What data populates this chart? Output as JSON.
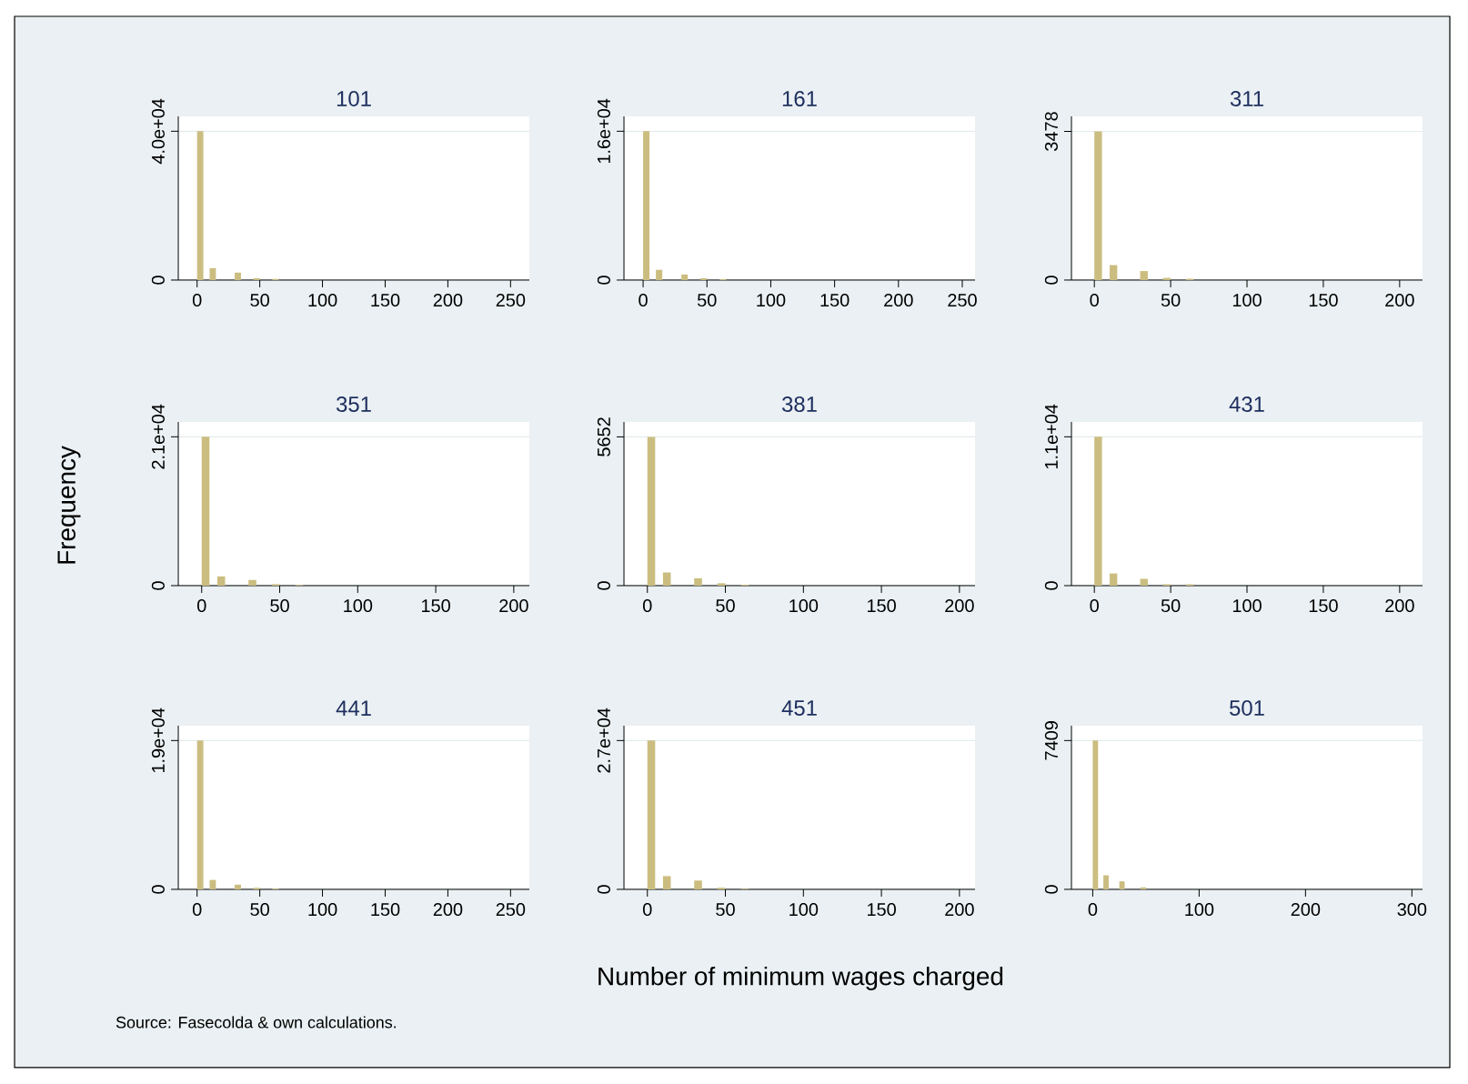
{
  "chart_data": [
    {
      "type": "histogram",
      "title": "101",
      "color": "#cbbd7f",
      "grid": "y",
      "bins": [
        0,
        5,
        10,
        15,
        20,
        25,
        30,
        35,
        40,
        45,
        50,
        55,
        60,
        65,
        70
      ],
      "values": [
        40000,
        0,
        3200,
        0,
        0,
        0,
        2000,
        0,
        0,
        500,
        0,
        0,
        300,
        0
      ],
      "xlim": [
        -15,
        265
      ],
      "xticks": [
        0,
        50,
        100,
        150,
        200,
        250
      ],
      "ylim": [
        0,
        44000
      ],
      "yticks": [
        0,
        {
          "value": 40000,
          "label": "4.0e+04"
        }
      ]
    },
    {
      "type": "histogram",
      "title": "161",
      "color": "#cbbd7f",
      "grid": "y",
      "bins": [
        0,
        5,
        10,
        15,
        20,
        25,
        30,
        35,
        40,
        45,
        50,
        55,
        60,
        65,
        70
      ],
      "values": [
        16000,
        0,
        1100,
        0,
        0,
        0,
        600,
        0,
        0,
        200,
        0,
        0,
        100,
        0
      ],
      "xlim": [
        -15,
        260
      ],
      "xticks": [
        0,
        50,
        100,
        150,
        200,
        250
      ],
      "ylim": [
        0,
        17600
      ],
      "yticks": [
        0,
        {
          "value": 16000,
          "label": "1.6e+04"
        }
      ]
    },
    {
      "type": "histogram",
      "title": "311",
      "color": "#cbbd7f",
      "grid": "y",
      "bins": [
        0,
        5,
        10,
        15,
        20,
        25,
        30,
        35,
        40,
        45,
        50,
        55,
        60,
        65,
        70
      ],
      "values": [
        3478,
        0,
        350,
        0,
        0,
        0,
        210,
        0,
        0,
        50,
        0,
        0,
        30,
        0
      ],
      "xlim": [
        -15,
        215
      ],
      "xticks": [
        0,
        50,
        100,
        150,
        200
      ],
      "ylim": [
        0,
        3830
      ],
      "yticks": [
        0,
        3478
      ]
    },
    {
      "type": "histogram",
      "title": "351",
      "ylabel": "Frequency",
      "color": "#cbbd7f",
      "grid": "y",
      "bins": [
        0,
        5,
        10,
        15,
        20,
        25,
        30,
        35,
        40,
        45,
        50,
        55,
        60,
        65,
        70
      ],
      "values": [
        21000,
        0,
        1300,
        0,
        0,
        0,
        800,
        0,
        0,
        200,
        0,
        0,
        100,
        0
      ],
      "xlim": [
        -15,
        210
      ],
      "xticks": [
        0,
        50,
        100,
        150,
        200
      ],
      "ylim": [
        0,
        23100
      ],
      "yticks": [
        0,
        {
          "value": 21000,
          "label": "2.1e+04"
        }
      ]
    },
    {
      "type": "histogram",
      "title": "381",
      "color": "#cbbd7f",
      "grid": "y",
      "bins": [
        0,
        5,
        10,
        15,
        20,
        25,
        30,
        35,
        40,
        45,
        50,
        55,
        60,
        65,
        70
      ],
      "values": [
        5652,
        0,
        500,
        0,
        0,
        0,
        280,
        0,
        0,
        90,
        0,
        0,
        30,
        0
      ],
      "xlim": [
        -15,
        210
      ],
      "xticks": [
        0,
        50,
        100,
        150,
        200
      ],
      "ylim": [
        0,
        6220
      ],
      "yticks": [
        0,
        5652
      ]
    },
    {
      "type": "histogram",
      "title": "431",
      "color": "#cbbd7f",
      "grid": "y",
      "bins": [
        0,
        5,
        10,
        15,
        20,
        25,
        30,
        35,
        40,
        45,
        50,
        55,
        60,
        65,
        70
      ],
      "values": [
        11000,
        0,
        900,
        0,
        0,
        0,
        500,
        0,
        0,
        100,
        0,
        0,
        100,
        0
      ],
      "xlim": [
        -15,
        215
      ],
      "xticks": [
        0,
        50,
        100,
        150,
        200
      ],
      "ylim": [
        0,
        12100
      ],
      "yticks": [
        0,
        {
          "value": 11000,
          "label": "1.1e+04"
        }
      ]
    },
    {
      "type": "histogram",
      "title": "441",
      "annotations": [
        "Source: Fasecolda & own calculations."
      ],
      "color": "#cbbd7f",
      "grid": "y",
      "bins": [
        0,
        5,
        10,
        15,
        20,
        25,
        30,
        35,
        40,
        45,
        50,
        55,
        60,
        65,
        70
      ],
      "values": [
        19000,
        0,
        1200,
        0,
        0,
        0,
        600,
        0,
        0,
        200,
        0,
        0,
        100,
        0
      ],
      "xlim": [
        -15,
        265
      ],
      "xticks": [
        0,
        50,
        100,
        150,
        200,
        250
      ],
      "ylim": [
        0,
        20900
      ],
      "yticks": [
        0,
        {
          "value": 19000,
          "label": "1.9e+04"
        }
      ]
    },
    {
      "type": "histogram",
      "title": "451",
      "xlabel": "Number of minimum wages charged",
      "color": "#cbbd7f",
      "grid": "y",
      "bins": [
        0,
        5,
        10,
        15,
        20,
        25,
        30,
        35,
        40,
        45,
        50,
        55,
        60,
        65,
        70
      ],
      "values": [
        27000,
        0,
        2400,
        0,
        0,
        0,
        1600,
        0,
        0,
        300,
        0,
        0,
        100,
        0
      ],
      "xlim": [
        -15,
        210
      ],
      "xticks": [
        0,
        50,
        100,
        150,
        200
      ],
      "ylim": [
        0,
        29700
      ],
      "yticks": [
        0,
        {
          "value": 27000,
          "label": "2.7e+04"
        }
      ]
    },
    {
      "type": "histogram",
      "title": "501",
      "color": "#cbbd7f",
      "grid": "y",
      "bins": [
        0,
        5,
        10,
        15,
        20,
        25,
        30,
        35,
        40,
        45,
        50,
        55,
        60,
        65,
        70
      ],
      "values": [
        7409,
        0,
        700,
        0,
        0,
        400,
        0,
        0,
        0,
        100,
        0,
        0,
        null,
        0
      ],
      "xlim": [
        -20,
        310
      ],
      "xticks": [
        0,
        100,
        200,
        300
      ],
      "ylim": [
        0,
        8150
      ],
      "yticks": [
        0,
        7409
      ]
    }
  ]
}
